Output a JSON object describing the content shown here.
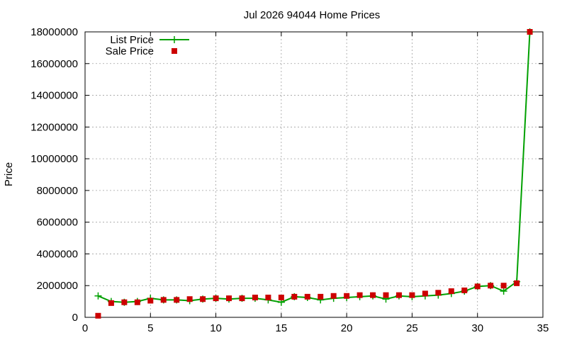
{
  "chart_data": {
    "type": "line",
    "title": "Jul 2026 94044 Home Prices",
    "xlabel": "",
    "ylabel": "Price",
    "xlim": [
      0,
      35
    ],
    "ylim": [
      0,
      18000000
    ],
    "x_ticks": [
      0,
      5,
      10,
      15,
      20,
      25,
      30,
      35
    ],
    "y_ticks": [
      0,
      2000000,
      4000000,
      6000000,
      8000000,
      10000000,
      12000000,
      14000000,
      16000000,
      18000000
    ],
    "grid": true,
    "legend": "top-left",
    "x": [
      1,
      2,
      3,
      4,
      5,
      6,
      7,
      8,
      9,
      10,
      11,
      12,
      13,
      14,
      15,
      16,
      17,
      18,
      19,
      20,
      21,
      22,
      23,
      24,
      25,
      26,
      27,
      28,
      29,
      30,
      31,
      32,
      33,
      34
    ],
    "series": [
      {
        "name": "List Price",
        "style": "line-plus",
        "color": "#00a000",
        "values": [
          1350000,
          1000000,
          950000,
          1000000,
          1200000,
          1100000,
          1100000,
          1050000,
          1150000,
          1200000,
          1150000,
          1200000,
          1200000,
          1100000,
          950000,
          1300000,
          1250000,
          1100000,
          1200000,
          1250000,
          1300000,
          1350000,
          1150000,
          1350000,
          1300000,
          1350000,
          1400000,
          1500000,
          1650000,
          1950000,
          2000000,
          1650000,
          2250000,
          18000000
        ]
      },
      {
        "name": "Sale Price",
        "style": "points-square",
        "color": "#cc0000",
        "values": [
          100000,
          900000,
          950000,
          950000,
          1050000,
          1100000,
          1100000,
          1150000,
          1150000,
          1200000,
          1200000,
          1200000,
          1250000,
          1250000,
          1250000,
          1300000,
          1300000,
          1300000,
          1350000,
          1350000,
          1400000,
          1400000,
          1400000,
          1400000,
          1400000,
          1500000,
          1550000,
          1650000,
          1700000,
          1950000,
          2000000,
          2000000,
          2150000,
          18000000
        ]
      }
    ]
  }
}
